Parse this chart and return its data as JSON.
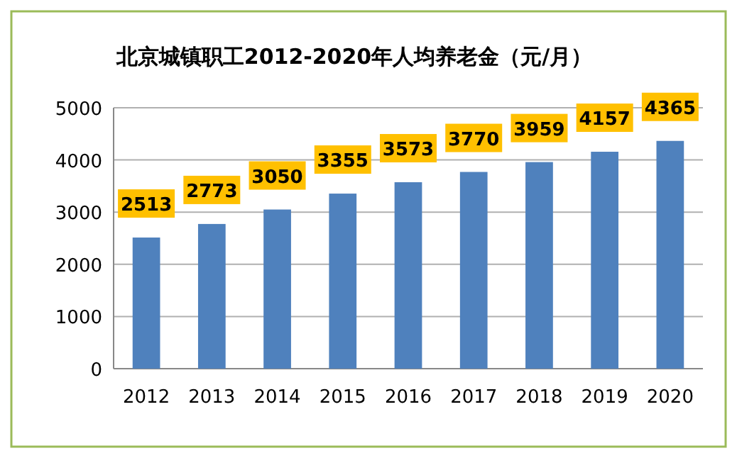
{
  "chart_data": {
    "type": "bar",
    "title": "北京城镇职工2012-2020年人均养老金（元/月）",
    "categories": [
      "2012",
      "2013",
      "2014",
      "2015",
      "2016",
      "2017",
      "2018",
      "2019",
      "2020"
    ],
    "values": [
      2513,
      2773,
      3050,
      3355,
      3573,
      3770,
      3959,
      4157,
      4365
    ],
    "color": "#4f81bd",
    "ylim": [
      0,
      5000
    ],
    "yticks": [
      0,
      1000,
      2000,
      3000,
      4000,
      5000
    ],
    "grid": "y",
    "data_labels": true
  }
}
